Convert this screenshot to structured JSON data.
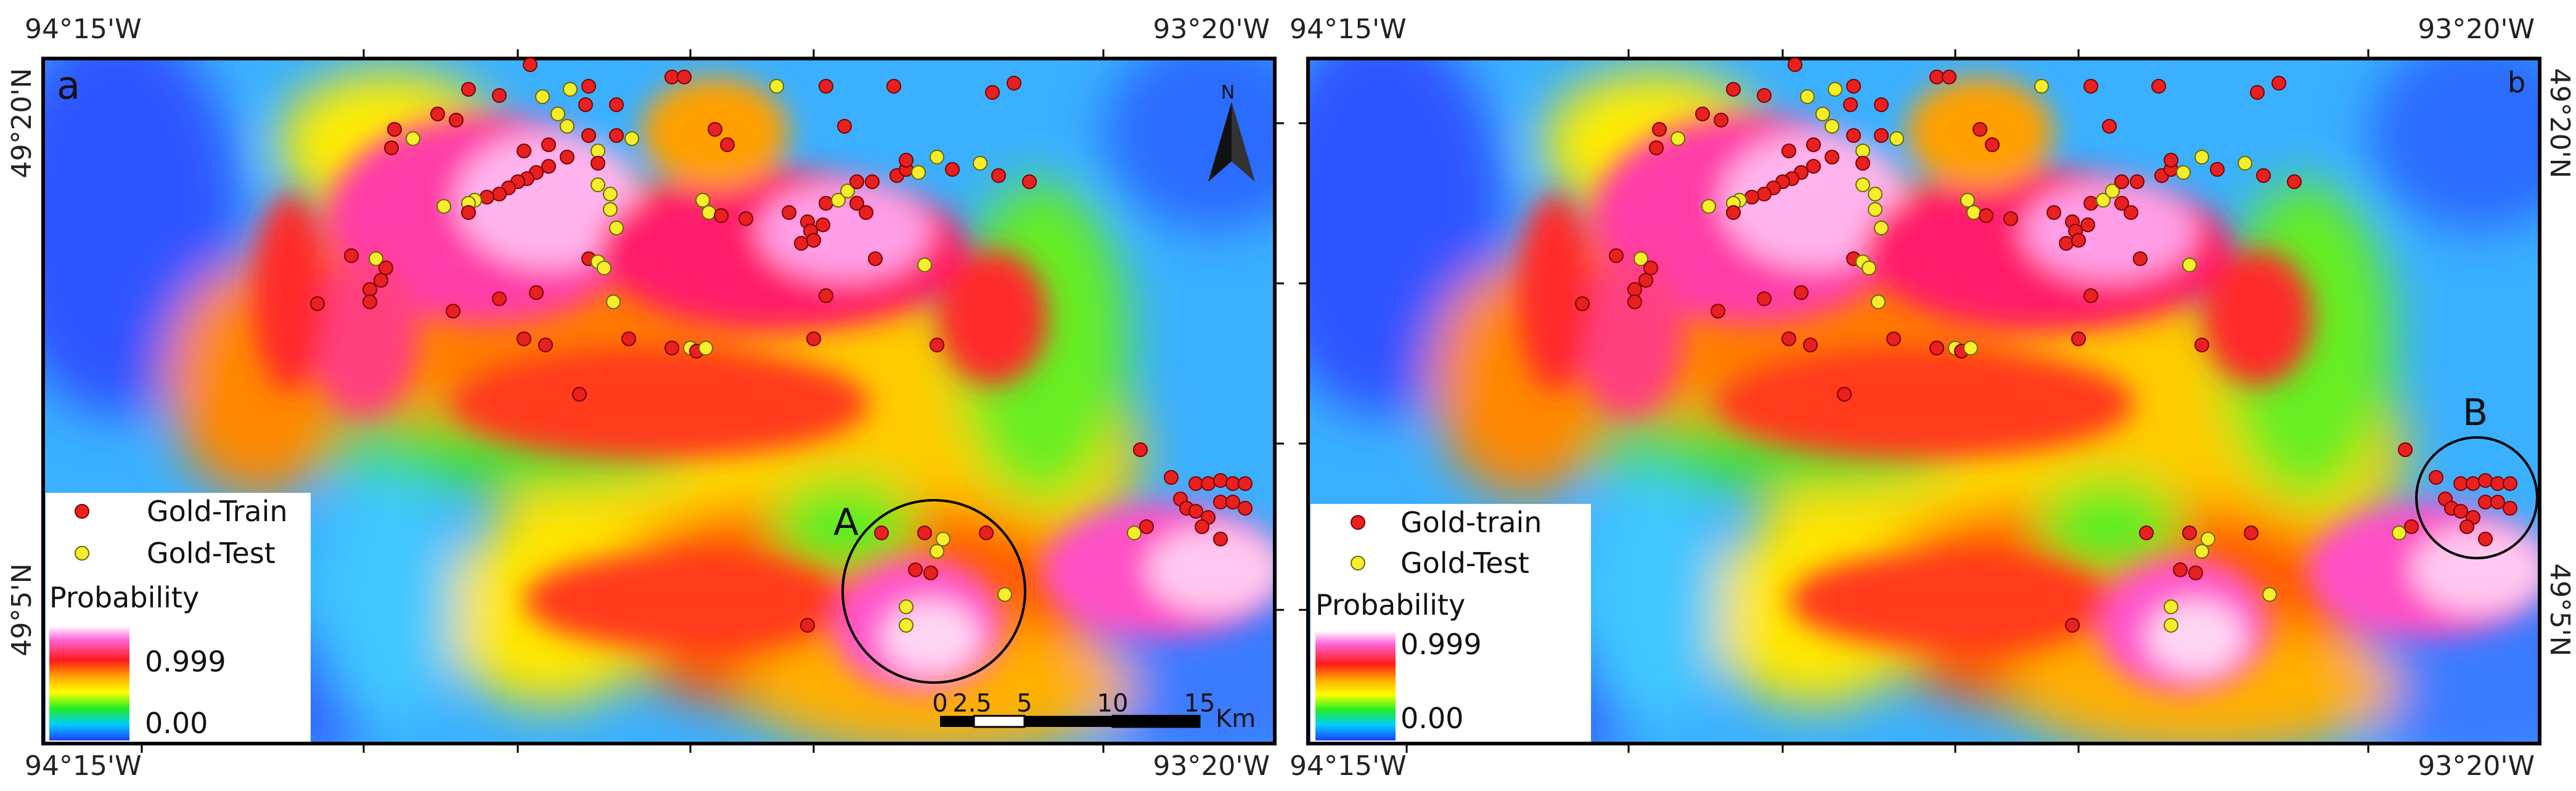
{
  "panels": [
    {
      "letter": "a",
      "coords": {
        "top_left": "94°15'W",
        "top_right": "93°20'W",
        "bottom_left": "94°15'W",
        "bottom_right": "93°20'W",
        "left_top": "49°20'N",
        "left_bottom": "49°5'N"
      },
      "legend": {
        "train_label": "Gold-Train",
        "test_label": "Gold-Test",
        "title": "Probability",
        "max_label": "0.999",
        "min_label": "0.00"
      },
      "circle_label": "A",
      "north_label": "N",
      "scale": {
        "ticks": [
          "0",
          "2.5",
          "5",
          "10",
          "15"
        ],
        "unit": "Km"
      }
    },
    {
      "letter": "b",
      "coords": {
        "top_left": "94°15'W",
        "top_right": "93°20'W",
        "bottom_left": "94°15'W",
        "bottom_right": "93°20'W",
        "right_top": "49°20'N",
        "right_bottom": "49°5'N"
      },
      "legend": {
        "train_label": "Gold-train",
        "test_label": "Gold-Test",
        "title": "Probability",
        "max_label": "0.999",
        "min_label": "0.00"
      },
      "circle_label": "B"
    }
  ],
  "colors": {
    "train": "#e8201f",
    "test": "#f6ee2a",
    "frame": "#000000"
  }
}
